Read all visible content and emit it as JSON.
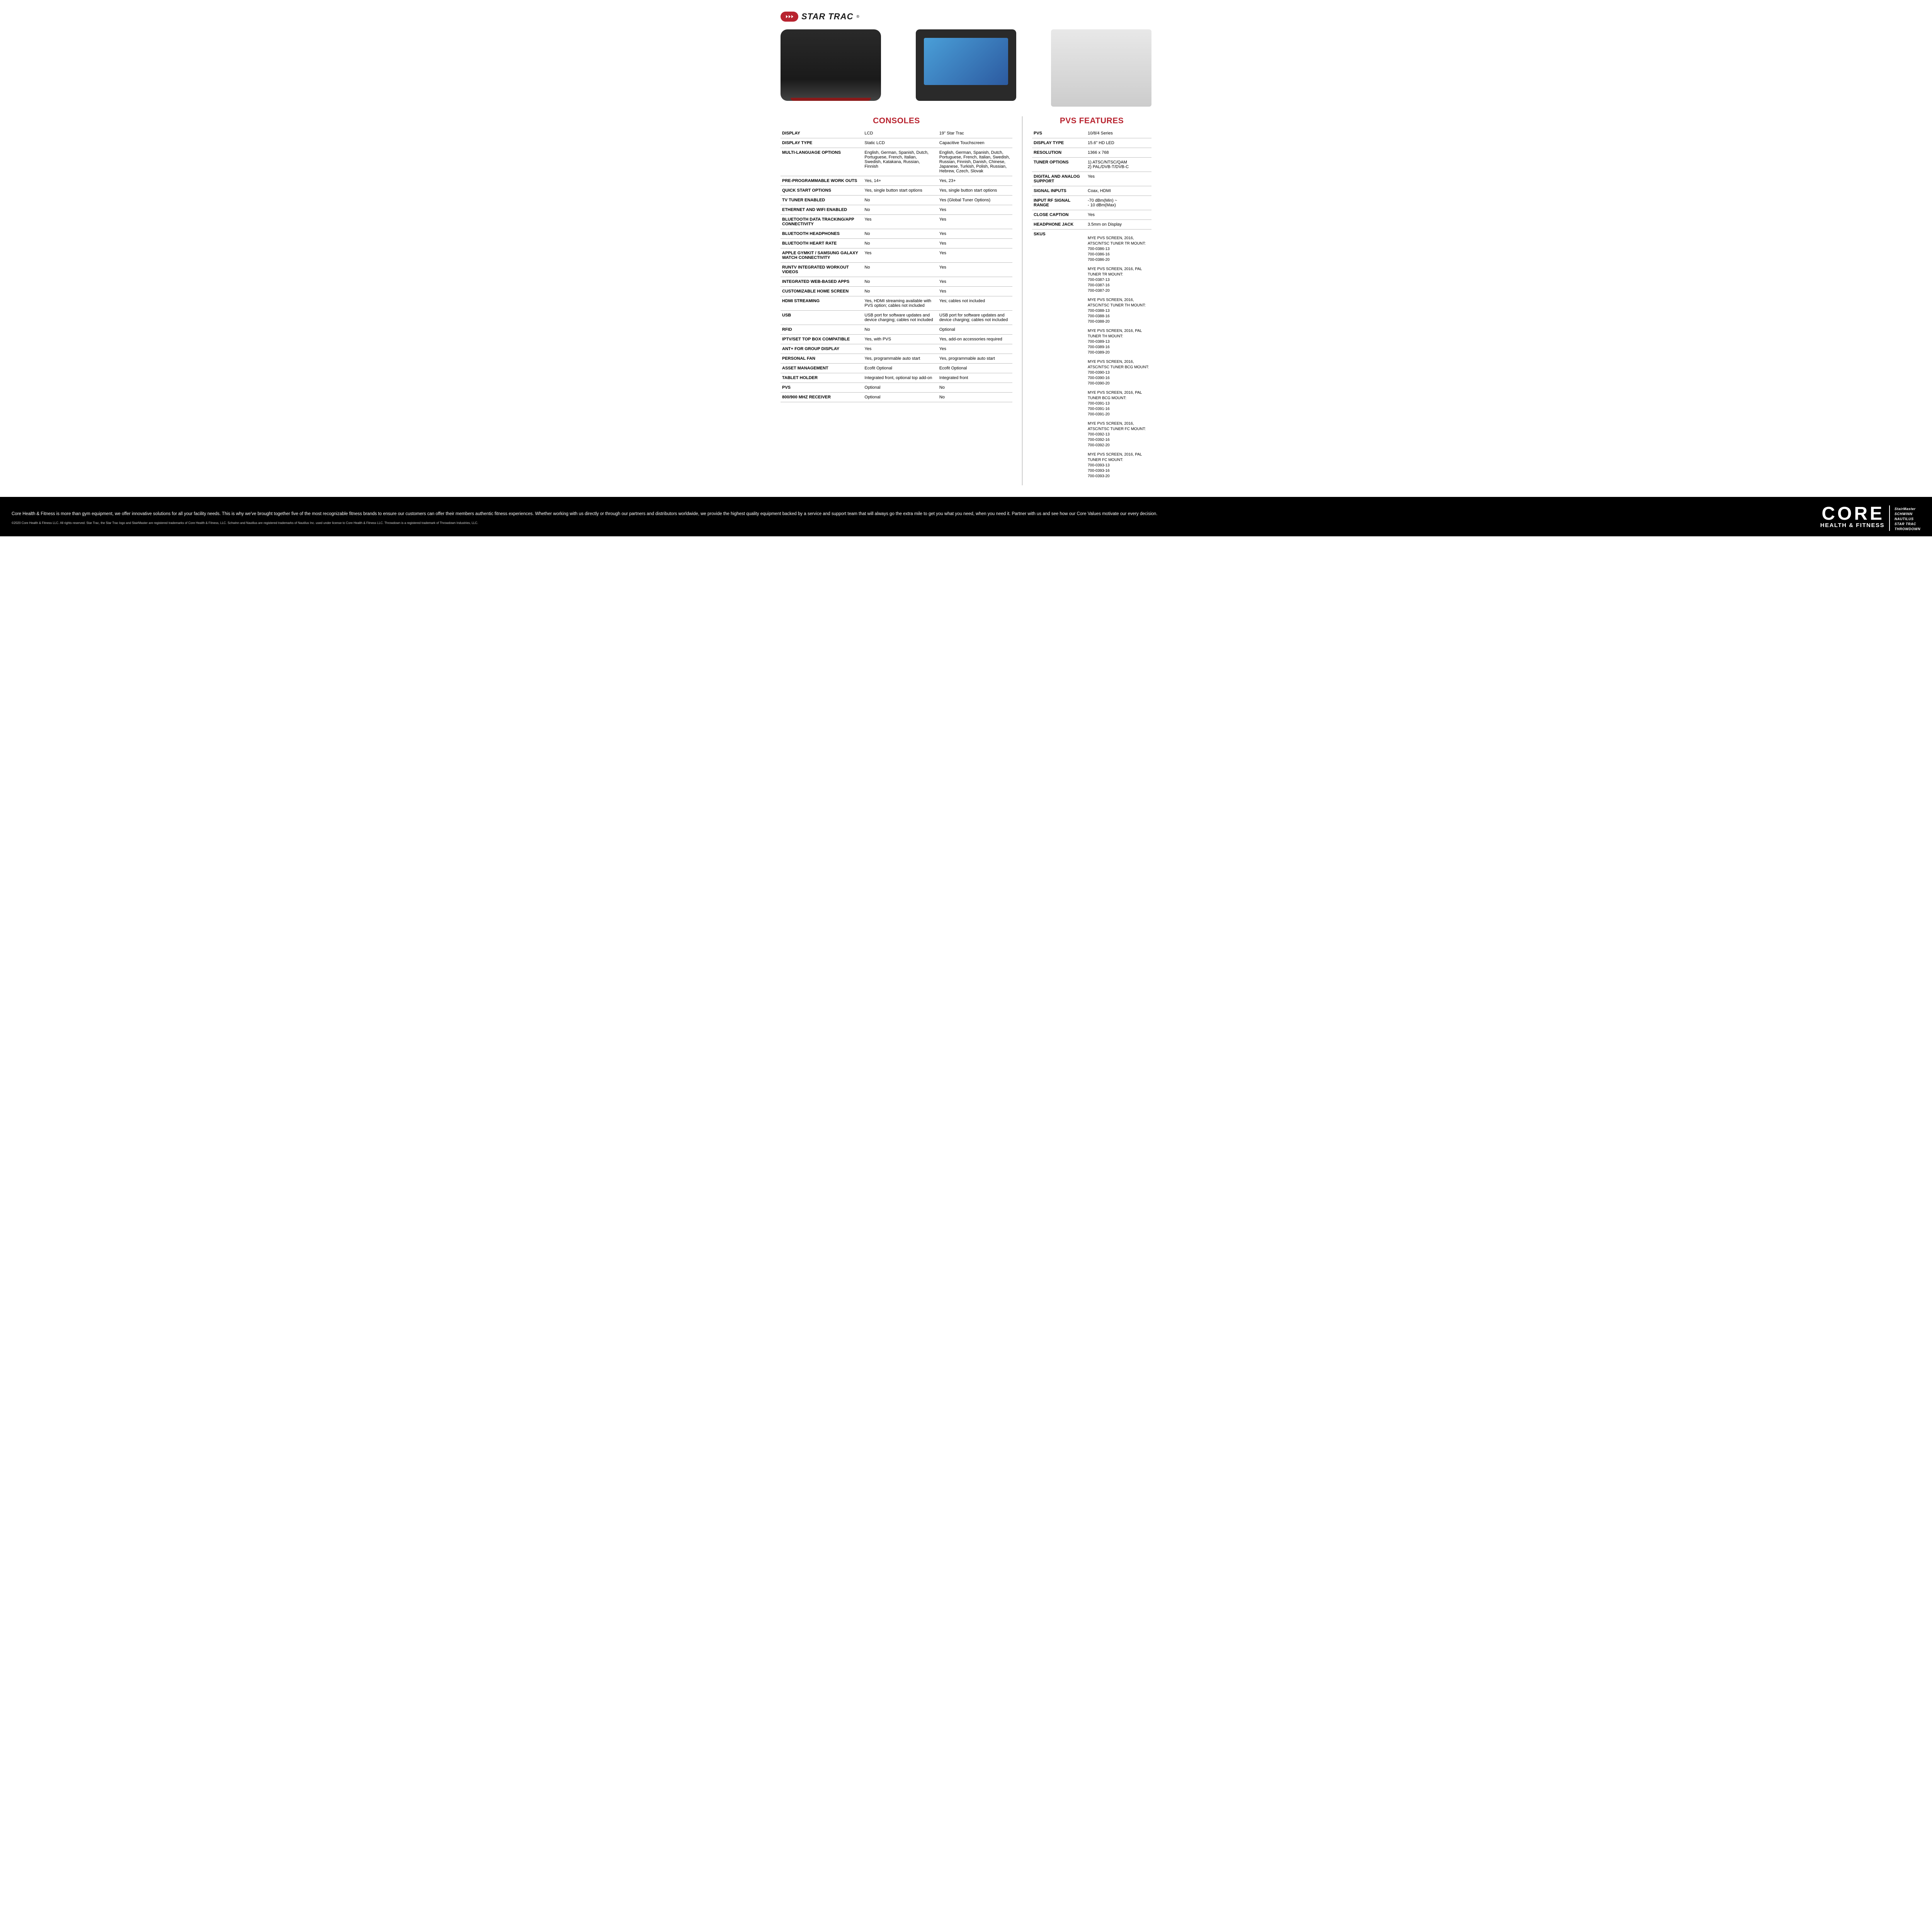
{
  "brand": {
    "name": "STAR TRAC"
  },
  "consoles": {
    "title": "CONSOLES",
    "rows": [
      {
        "label": "DISPLAY",
        "c1": "LCD",
        "c2": "19\" Star Trac"
      },
      {
        "label": "DISPLAY TYPE",
        "c1": "Static LCD",
        "c2": "Capacitive Touchscreen"
      },
      {
        "label": "MULTI-LANGUAGE OPTIONS",
        "c1": "English, German, Spanish, Dutch, Portuguese, French, Italian, Swedish, Katakana, Russian, Finnish",
        "c2": "English, German, Spanish, Dutch, Portuguese, French, Italian, Swedish, Russian, Finnish, Danish, Chinese, Japanese, Turkish, Polish, Russian, Hebrew, Czech, Slovak"
      },
      {
        "label": "PRE-PROGRAMMABLE WORK OUTS",
        "c1": "Yes, 14+",
        "c2": "Yes, 23+"
      },
      {
        "label": "QUICK START OPTIONS",
        "c1": "Yes, single button start options",
        "c2": "Yes, single button start options"
      },
      {
        "label": "TV TUNER ENABLED",
        "c1": "No",
        "c2": "Yes (Global Tuner Options)"
      },
      {
        "label": "ETHERNET AND WIFI ENABLED",
        "c1": "No",
        "c2": "Yes"
      },
      {
        "label": "BLUETOOTH DATA TRACKING/APP CONNECTIVITY",
        "c1": "Yes",
        "c2": "Yes"
      },
      {
        "label": "BLUETOOTH HEADPHONES",
        "c1": "No",
        "c2": "Yes"
      },
      {
        "label": "BLUETOOTH HEART RATE",
        "c1": "No",
        "c2": "Yes"
      },
      {
        "label": "APPLE GYMKIT / SAMSUNG GALAXY WATCH CONNECTIVITY",
        "c1": "Yes",
        "c2": "Yes"
      },
      {
        "label": "RUNTV INTEGRATED WORKOUT VIDEOS",
        "c1": "No",
        "c2": "Yes"
      },
      {
        "label": "INTEGRATED WEB-BASED APPS",
        "c1": "No",
        "c2": "Yes"
      },
      {
        "label": "CUSTOMIZABLE HOME SCREEN",
        "c1": "No",
        "c2": "Yes"
      },
      {
        "label": "HDMI STREAMING",
        "c1": "Yes, HDMI streaming available with PVS option; cables not included",
        "c2": "Yes; cables not included"
      },
      {
        "label": "USB",
        "c1": "USB port for software updates and device charging; cables not included",
        "c2": "USB port for software updates and device charging; cables not included"
      },
      {
        "label": "RFID",
        "c1": "No",
        "c2": "Optional"
      },
      {
        "label": "IPTV/SET TOP BOX COMPATIBLE",
        "c1": "Yes, with PVS",
        "c2": "Yes, add-on accessories required"
      },
      {
        "label": "ANT+ FOR GROUP DISPLAY",
        "c1": "Yes",
        "c2": "Yes"
      },
      {
        "label": "PERSONAL FAN",
        "c1": "Yes, programmable auto start",
        "c2": "Yes, programmable auto start"
      },
      {
        "label": "ASSET MANAGEMENT",
        "c1": "Ecofit Optional",
        "c2": "Ecofit Optional"
      },
      {
        "label": "TABLET HOLDER",
        "c1": "Integrated front, optional top add-on",
        "c2": "Integrated front"
      },
      {
        "label": "PVS",
        "c1": "Optional",
        "c2": "No"
      },
      {
        "label": "800/900 MHZ RECEIVER",
        "c1": "Optional",
        "c2": "No"
      }
    ]
  },
  "pvs": {
    "title": "PVS FEATURES",
    "rows": [
      {
        "label": "PVS",
        "val": "10/8/4 Series"
      },
      {
        "label": "DISPLAY TYPE",
        "val": "15.6\" HD LED"
      },
      {
        "label": "RESOLUTION",
        "val": "1366 x 768"
      },
      {
        "label": "TUNER OPTIONS",
        "val": "1) ATSC/NTSC/QAM\n2) PAL/DVB-T/DVB-C"
      },
      {
        "label": "DIGITAL AND ANALOG SUPPORT",
        "val": "Yes"
      },
      {
        "label": "SIGNAL INPUTS",
        "val": "Coax, HDMI"
      },
      {
        "label": "INPUT RF SIGNAL RANGE",
        "val": "-70 dBm(Min)  ~\n- 10 dBm(Max)"
      },
      {
        "label": "CLOSE CAPTION",
        "val": "Yes"
      },
      {
        "label": "HEADPHONE JACK",
        "val": "3.5mm on Display"
      }
    ],
    "skus_label": "SKUS",
    "skus": [
      {
        "title": "MYE PVS SCREEN, 2016, ATSC/NTSC TUNER TR MOUNT:",
        "codes": [
          "700-0386-13",
          "700-0386-16",
          "700-0386-20"
        ]
      },
      {
        "title": "MYE PVS SCREEN, 2016, PAL TUNER TR MOUNT:",
        "codes": [
          "700-0387-13",
          "700-0387-16",
          "700-0387-20"
        ]
      },
      {
        "title": "MYE PVS SCREEN, 2016, ATSC/NTSC TUNER TH MOUNT:",
        "codes": [
          "700-0388-13",
          "700-0388-16",
          "700-0388-20"
        ]
      },
      {
        "title": "MYE PVS SCREEN, 2016, PAL TUNER TH MOUNT:",
        "codes": [
          "700-0389-13",
          "700-0389-16",
          "700-0389-20"
        ]
      },
      {
        "title": "MYE PVS SCREEN, 2016, ATSC/NTSC TUNER BCG MOUNT:",
        "codes": [
          "700-0390-13",
          "700-0390-16",
          "700-0390-20"
        ]
      },
      {
        "title": "MYE PVS SCREEN, 2016, PAL TUNER BCG MOUNT:",
        "codes": [
          "700-0391-13",
          "700-0391-16",
          "700-0391-20"
        ]
      },
      {
        "title": "MYE PVS SCREEN, 2016, ATSC/NTSC TUNER FC MOUNT:",
        "codes": [
          "700-0392-13",
          "700-0392-16",
          "700-0392-20"
        ]
      },
      {
        "title": "MYE PVS SCREEN, 2016, PAL TUNER FC MOUNT:",
        "codes": [
          "700-0393-13",
          "700-0393-16",
          "700-0393-20"
        ]
      }
    ]
  },
  "footer": {
    "blurb": "Core Health & Fitness is more than gym equipment, we offer innovative solutions for all your facility needs. This is why we've brought together five of the most recognizable fitness brands to ensure our customers can offer their members authentic fitness experiences. Whether working with us directly or through our partners and distributors worldwide, we provide the highest quality equipment backed by a service and support team that will always go the extra mile to get you what you need, when you need it. Partner with us and see how our Core Values motivate our every decision.",
    "copyright": "©2020 Core Health & Fitness LLC. All rights reserved. Star Trac, the Star Trac logo and StairMaster are registered trademarks of Core Health & Fitness, LLC. Schwinn and Nautilus are registered trademarks of Nautilus Inc. used under license to Core Health & Fitness LLC. Throwdown is a registered trademark of Throwdown Industries, LLC.",
    "core_big": "CORE",
    "core_sub": "HEALTH & FITNESS",
    "brands": [
      "StairMaster",
      "SCHWINN",
      "NAUTILUS",
      "STAR TRAC",
      "THROWDOWN"
    ]
  },
  "colors": {
    "accent": "#b8232f",
    "text": "#000000",
    "footer_bg": "#000000"
  }
}
